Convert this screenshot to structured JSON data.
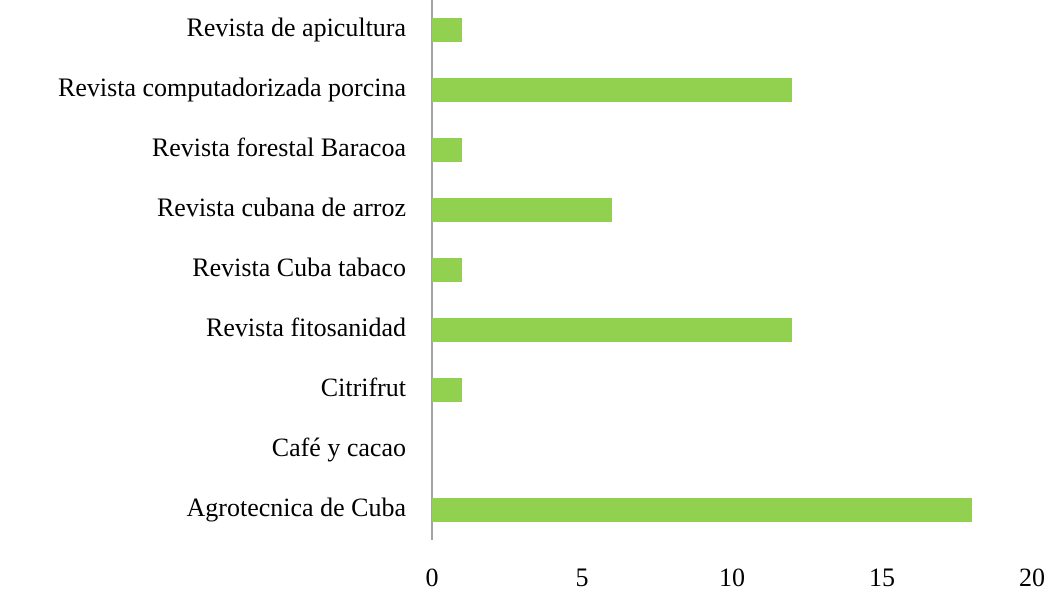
{
  "chart_data": {
    "type": "barh",
    "categories": [
      "Revista de apicultura",
      "Revista computadorizada porcina",
      "Revista forestal Baracoa",
      "Revista cubana de arroz",
      "Revista Cuba tabaco",
      "Revista fitosanidad",
      "Citrifrut",
      "Café y cacao",
      "Agrotecnica de Cuba"
    ],
    "values": [
      1,
      12,
      1,
      6,
      1,
      12,
      1,
      0,
      18
    ],
    "color": "#92d050",
    "xlim": [
      0,
      20
    ],
    "xticks": [
      0,
      5,
      10,
      15,
      20
    ],
    "grid": false
  }
}
